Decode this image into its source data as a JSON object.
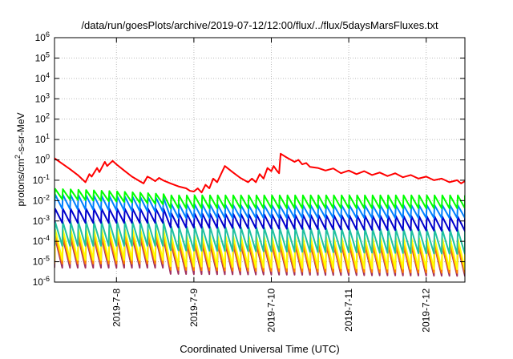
{
  "chart_data": {
    "type": "line",
    "title": "/data/run/goesPlots/archive/2019-07-12/12:00/flux/../flux/5daysMarsFluxes.txt",
    "xlabel": "Coordinated Universal Time (UTC)",
    "ylabel": {
      "prefix": "protons/cm",
      "sup": "2",
      "suffix": "-s-sr-MeV"
    },
    "y_scale": "log",
    "ylim": [
      1e-06,
      1000000.0
    ],
    "y_ticks": [
      {
        "value": 1e-06,
        "exp": "-6"
      },
      {
        "value": 1e-05,
        "exp": "-5"
      },
      {
        "value": 0.0001,
        "exp": "-4"
      },
      {
        "value": 0.001,
        "exp": "-3"
      },
      {
        "value": 0.01,
        "exp": "-2"
      },
      {
        "value": 0.1,
        "exp": "-1"
      },
      {
        "value": 1.0,
        "exp": "0"
      },
      {
        "value": 10.0,
        "exp": "1"
      },
      {
        "value": 100.0,
        "exp": "2"
      },
      {
        "value": 1000.0,
        "exp": "3"
      },
      {
        "value": 10000.0,
        "exp": "4"
      },
      {
        "value": 100000.0,
        "exp": "5"
      },
      {
        "value": 1000000.0,
        "exp": "6"
      }
    ],
    "x_ticks": [
      "2019-7-8",
      "2019-7-9",
      "2019-7-10",
      "2019-7-11",
      "2019-7-12"
    ],
    "xlim_days": [
      -0.8,
      4.5
    ],
    "grid": true,
    "series": [
      {
        "color": "#ff0000",
        "points": [
          [
            -0.8,
            1.2
          ],
          [
            -0.7,
            0.65
          ],
          [
            -0.6,
            0.35
          ],
          [
            -0.5,
            0.18
          ],
          [
            -0.45,
            0.12
          ],
          [
            -0.4,
            0.08
          ],
          [
            -0.35,
            0.2
          ],
          [
            -0.32,
            0.15
          ],
          [
            -0.25,
            0.4
          ],
          [
            -0.22,
            0.25
          ],
          [
            -0.15,
            0.8
          ],
          [
            -0.12,
            0.5
          ],
          [
            -0.05,
            0.9
          ],
          [
            0.0,
            0.6
          ],
          [
            0.1,
            0.3
          ],
          [
            0.2,
            0.15
          ],
          [
            0.3,
            0.09
          ],
          [
            0.35,
            0.07
          ],
          [
            0.4,
            0.15
          ],
          [
            0.45,
            0.12
          ],
          [
            0.5,
            0.09
          ],
          [
            0.55,
            0.13
          ],
          [
            0.6,
            0.1
          ],
          [
            0.7,
            0.07
          ],
          [
            0.8,
            0.05
          ],
          [
            0.9,
            0.04
          ],
          [
            0.95,
            0.03
          ],
          [
            1.0,
            0.028
          ],
          [
            1.05,
            0.04
          ],
          [
            1.1,
            0.025
          ],
          [
            1.15,
            0.06
          ],
          [
            1.2,
            0.04
          ],
          [
            1.25,
            0.12
          ],
          [
            1.3,
            0.08
          ],
          [
            1.4,
            0.5
          ],
          [
            1.5,
            0.25
          ],
          [
            1.6,
            0.13
          ],
          [
            1.7,
            0.08
          ],
          [
            1.75,
            0.12
          ],
          [
            1.8,
            0.08
          ],
          [
            1.85,
            0.2
          ],
          [
            1.9,
            0.12
          ],
          [
            1.95,
            0.4
          ],
          [
            2.0,
            0.28
          ],
          [
            2.03,
            0.5
          ],
          [
            2.07,
            0.3
          ],
          [
            2.1,
            0.22
          ],
          [
            2.12,
            2.0
          ],
          [
            2.2,
            1.3
          ],
          [
            2.3,
            0.8
          ],
          [
            2.35,
            1.0
          ],
          [
            2.4,
            0.6
          ],
          [
            2.45,
            0.7
          ],
          [
            2.5,
            0.45
          ],
          [
            2.6,
            0.4
          ],
          [
            2.7,
            0.3
          ],
          [
            2.8,
            0.38
          ],
          [
            2.9,
            0.22
          ],
          [
            3.0,
            0.3
          ],
          [
            3.1,
            0.2
          ],
          [
            3.2,
            0.28
          ],
          [
            3.3,
            0.18
          ],
          [
            3.4,
            0.24
          ],
          [
            3.5,
            0.16
          ],
          [
            3.6,
            0.22
          ],
          [
            3.7,
            0.14
          ],
          [
            3.8,
            0.18
          ],
          [
            3.9,
            0.12
          ],
          [
            4.0,
            0.15
          ],
          [
            4.1,
            0.1
          ],
          [
            4.2,
            0.12
          ],
          [
            4.3,
            0.08
          ],
          [
            4.4,
            0.1
          ],
          [
            4.45,
            0.07
          ],
          [
            4.5,
            0.09
          ]
        ]
      },
      {
        "color": "#00ff00",
        "low": 0.012,
        "high": 0.038,
        "start": 0.035,
        "period": 0.1,
        "drift": [
          [
            -0.8,
            1.0
          ],
          [
            0.6,
            0.55
          ],
          [
            0.7,
            0.25
          ],
          [
            2.5,
            0.18
          ],
          [
            4.5,
            0.12
          ]
        ]
      },
      {
        "color": "#0080ff",
        "low": 0.004,
        "high": 0.02,
        "start": 0.02,
        "period": 0.1,
        "drift": [
          [
            -0.8,
            1.0
          ],
          [
            0.6,
            0.7
          ],
          [
            0.7,
            0.35
          ],
          [
            2.5,
            0.25
          ],
          [
            4.5,
            0.18
          ]
        ]
      },
      {
        "color": "#0000cc",
        "low": 0.0008,
        "high": 0.004,
        "start": 0.003,
        "period": 0.1,
        "drift": [
          [
            -0.8,
            1.0
          ],
          [
            0.6,
            1.0
          ],
          [
            0.7,
            0.6
          ],
          [
            2.5,
            0.5
          ],
          [
            4.5,
            0.4
          ]
        ]
      },
      {
        "color": "#20c0a0",
        "low": 6e-05,
        "high": 0.0009,
        "start": 0.002,
        "period": 0.1,
        "drift": [
          [
            -0.8,
            1.0
          ],
          [
            0.6,
            1.0
          ],
          [
            0.7,
            0.6
          ],
          [
            2.5,
            0.5
          ],
          [
            4.5,
            0.4
          ]
        ]
      },
      {
        "color": "#ffff00",
        "low": 1.2e-05,
        "high": 0.0004,
        "start": 0.0006,
        "period": 0.1,
        "drift": [
          [
            -0.8,
            1.0
          ],
          [
            0.6,
            1.0
          ],
          [
            0.7,
            0.5
          ],
          [
            2.5,
            0.4
          ],
          [
            4.5,
            0.35
          ]
        ]
      },
      {
        "color": "#ff8000",
        "low": 8e-06,
        "high": 0.0002,
        "start": 0.0003,
        "period": 0.1,
        "drift": [
          [
            -0.8,
            1.0
          ],
          [
            0.6,
            1.0
          ],
          [
            0.7,
            0.5
          ],
          [
            2.5,
            0.4
          ],
          [
            4.5,
            0.35
          ]
        ]
      },
      {
        "color": "#a03060",
        "low": 5e-06,
        "high": 0.00015,
        "start": 0.0002,
        "period": 0.1,
        "drift": [
          [
            -0.8,
            1.0
          ],
          [
            0.6,
            1.0
          ],
          [
            0.7,
            0.5
          ],
          [
            2.5,
            0.45
          ],
          [
            4.5,
            0.4
          ]
        ]
      }
    ]
  }
}
